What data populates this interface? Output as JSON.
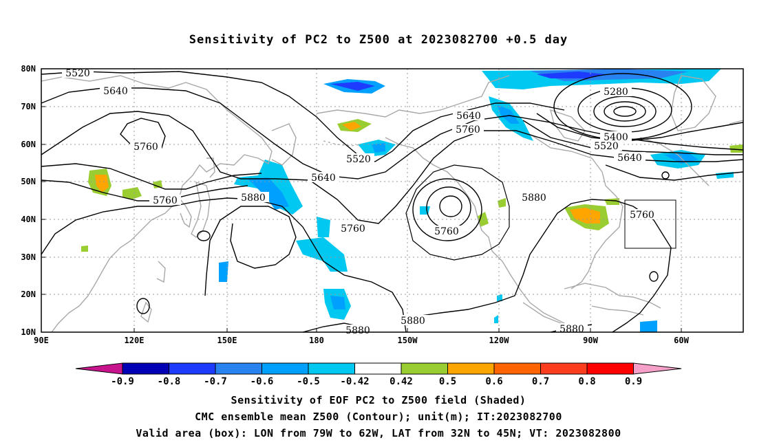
{
  "title": "Sensitivity of PC2 to Z500 at 2023082700 +0.5 day",
  "lat_ticks": [
    "80N",
    "70N",
    "60N",
    "50N",
    "40N",
    "30N",
    "20N",
    "10N"
  ],
  "lon_ticks": [
    "90E",
    "120E",
    "150E",
    "180",
    "150W",
    "120W",
    "90W",
    "60W"
  ],
  "contour_labels": {
    "c1": "5520",
    "c2": "5640",
    "c3": "5760",
    "c4": "5280",
    "c5": "5640",
    "c6": "5760",
    "c7": "5400",
    "c8": "5520",
    "c9": "5520",
    "c10": "5640",
    "c11": "5640",
    "c12": "5760",
    "c13": "5880",
    "c14": "5760",
    "c15": "5760",
    "c16": "5880",
    "c17": "5760",
    "c18": "5880",
    "c19": "5880",
    "c20": "5880"
  },
  "colorbar": {
    "labels": [
      "-0.9",
      "-0.8",
      "-0.7",
      "-0.6",
      "-0.5",
      "-0.42",
      "0.42",
      "0.5",
      "0.6",
      "0.7",
      "0.8",
      "0.9"
    ],
    "colors": [
      "#0000b4",
      "#1e3cff",
      "#2882f0",
      "#00a0ff",
      "#00c8f0",
      "#ffffff",
      "#9acd32",
      "#ffa500",
      "#ff6400",
      "#ff3c1e",
      "#ff0000"
    ],
    "low_arrow": "#c8148c",
    "high_arrow": "#f5a0c8"
  },
  "captions": {
    "line1": "Sensitivity of EOF PC2 to Z500 field (Shaded)",
    "line2": "CMC ensemble mean Z500 (Contour); unit(m); IT:2023082700",
    "line3": "Valid area (box): LON from 79W to 62W, LAT from 32N to 45N; VT: 2023082800"
  }
}
